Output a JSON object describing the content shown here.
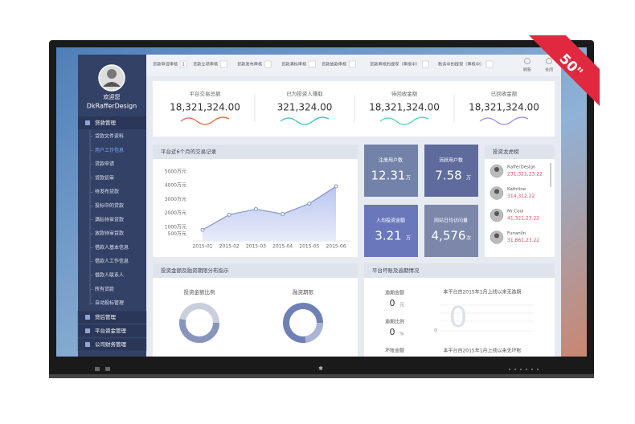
{
  "badge": "50\"",
  "sidebar": {
    "greeting": "欢迎您",
    "username": "DkRafferDesign",
    "menu": [
      {
        "label": "贷款管理",
        "items": [
          "贷款文件资料",
          "用户工作信息",
          "贷款申请",
          "贷款初审",
          "待发布贷款",
          "投标中的贷款",
          "满标待审贷款",
          "放款待审贷款",
          "借款人基本信息",
          "借款人工作信息",
          "借款人联系人",
          "所有贷款",
          "自动投标管理"
        ]
      },
      {
        "label": "贷后管理"
      },
      {
        "label": "平台资金管理"
      },
      {
        "label": "公司财务管理"
      }
    ]
  },
  "toolbar": {
    "tabs": [
      {
        "label": "贷款申请审核",
        "count": "1"
      },
      {
        "label": "贷款立项审核"
      },
      {
        "label": "贷款发布审核"
      },
      {
        "label": "贷款满标审核"
      },
      {
        "label": "贷款放款审核"
      },
      {
        "label": "贷款审核的提现（审核中）"
      },
      {
        "label": "账务中的提现（审核中）"
      }
    ],
    "actions": [
      "刷新",
      "关闭"
    ]
  },
  "stats": [
    {
      "label": "平台交易总额",
      "value": "18,321,324.00"
    },
    {
      "label": "已为投资人赚取",
      "value": "321,324.00"
    },
    {
      "label": "待回收金额",
      "value": "18,321,324.00"
    },
    {
      "label": "已回收金额",
      "value": "18,321,324.00"
    }
  ],
  "chart_data": {
    "type": "line",
    "title": "平台近6个月的交易记录",
    "categories": [
      "2015-01",
      "2015-02",
      "2015-03",
      "2015-04",
      "2015-05",
      "2015-06"
    ],
    "values": [
      800,
      1900,
      2300,
      1950,
      2700,
      3950
    ],
    "color": "#8796c9",
    "ylim": [
      0,
      5000
    ],
    "yticks": [
      {
        "value": 500,
        "label": "500万元"
      },
      {
        "value": 1000,
        "label": "1000万元"
      },
      {
        "value": 2000,
        "label": "2000万元"
      },
      {
        "value": 3000,
        "label": "3000万元"
      },
      {
        "value": 4000,
        "label": "4000万元"
      },
      {
        "value": 5000,
        "label": "5000万元"
      }
    ]
  },
  "kpis": [
    {
      "label": "注册用户数",
      "value": "12.31",
      "unit": "万",
      "color": "#7382a8"
    },
    {
      "label": "活跃用户数",
      "value": "7.58",
      "unit": "万",
      "color": "#5e6b9c"
    },
    {
      "label": "人均投资金额",
      "value": "3.21",
      "unit": "万",
      "color": "#6a78bb"
    },
    {
      "label": "网站日均访问量",
      "value": "4,576",
      "unit": "次",
      "color": "#7c87aa"
    }
  ],
  "investors": {
    "title": "投资龙虎榜",
    "list": [
      {
        "name": "RafferDesign",
        "amount": "231,321,23.22"
      },
      {
        "name": "Kathtine",
        "amount": "314,312.22"
      },
      {
        "name": "Mr.Cool",
        "amount": "41,321,23.22"
      },
      {
        "name": "Funanlin",
        "amount": "31,861,23.22"
      }
    ]
  },
  "distribution": {
    "title": "投资金额及融资期限分布指示",
    "charts": [
      "投资金额比例",
      "融资期限"
    ]
  },
  "overdue": {
    "title": "平台坏账及逾期情况",
    "items": [
      {
        "label": "逾期金额",
        "value": "0",
        "unit": "元"
      },
      {
        "label": "逾期比例",
        "value": "0",
        "unit": "%"
      },
      {
        "label": "坏账金额"
      }
    ],
    "notes": [
      "本平台自2015年1月上线以来无逾期",
      "本平台自2015年1月上线以来无坏账"
    ],
    "big_value": "0",
    "axis_label": "0"
  }
}
